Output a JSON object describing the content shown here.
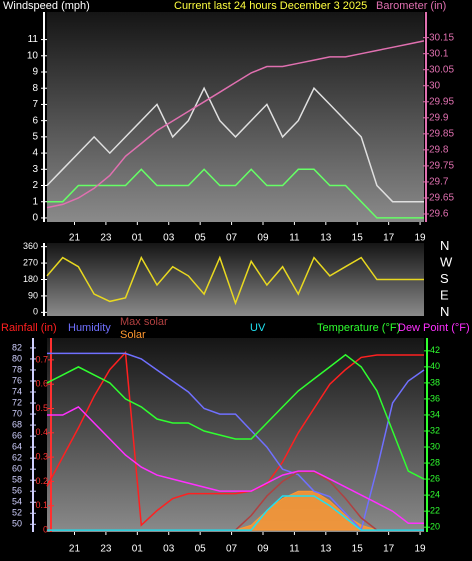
{
  "chart_data": [
    {
      "type": "line",
      "title": "Current last 24 hours December 3 2025",
      "ylabel": "Windspeed (mph)",
      "y2label": "Barometer (in)",
      "x": [
        0,
        1,
        2,
        3,
        4,
        5,
        6,
        7,
        8,
        9,
        10,
        11,
        12,
        13,
        14,
        15,
        16,
        17,
        18,
        19,
        20,
        21,
        22,
        23,
        24
      ],
      "xlim": [
        0,
        24
      ],
      "xticks": [
        {
          "value": 1.75,
          "label": "21"
        },
        {
          "value": 3.75,
          "label": "23"
        },
        {
          "value": 5.75,
          "label": "01"
        },
        {
          "value": 7.75,
          "label": "03"
        },
        {
          "value": 9.75,
          "label": "05"
        },
        {
          "value": 11.75,
          "label": "07"
        },
        {
          "value": 13.75,
          "label": "09"
        },
        {
          "value": 15.75,
          "label": "11"
        },
        {
          "value": 17.75,
          "label": "13"
        },
        {
          "value": 19.75,
          "label": "15"
        },
        {
          "value": 21.75,
          "label": "17"
        },
        {
          "value": 23.75,
          "label": "19"
        }
      ],
      "ylim": [
        -0.25,
        12.7
      ],
      "yticks": [
        0,
        1,
        2,
        3,
        4,
        5,
        6,
        7,
        8,
        9,
        10,
        11
      ],
      "y2lim": [
        29.575,
        30.23
      ],
      "y2ticks": [
        29.6,
        29.65,
        29.7,
        29.75,
        29.8,
        29.85,
        29.9,
        29.95,
        30,
        30.05,
        30.1,
        30.15
      ],
      "series": [
        {
          "color": "#e0e0e0",
          "values": [
            2,
            3,
            4,
            5,
            4,
            5,
            6,
            7,
            5,
            6,
            8,
            6,
            5,
            6,
            7,
            5,
            6,
            8,
            7,
            6,
            5,
            2,
            1,
            1,
            1
          ]
        },
        {
          "color": "#66ff66",
          "values": [
            1,
            1,
            2,
            2,
            2,
            2,
            3,
            2,
            2,
            2,
            3,
            2,
            2,
            3,
            2,
            2,
            3,
            3,
            2,
            2,
            1,
            0,
            0,
            0,
            0
          ]
        },
        {
          "color": "#e070b0",
          "axis": "y2",
          "values": [
            29.62,
            29.63,
            29.65,
            29.68,
            29.72,
            29.78,
            29.82,
            29.86,
            29.89,
            29.92,
            29.95,
            29.98,
            30.01,
            30.04,
            30.06,
            30.06,
            30.07,
            30.08,
            30.09,
            30.09,
            30.1,
            30.11,
            30.12,
            30.13,
            30.14
          ]
        }
      ]
    },
    {
      "type": "line",
      "x": [
        0,
        1,
        2,
        3,
        4,
        5,
        6,
        7,
        8,
        9,
        10,
        11,
        12,
        13,
        14,
        15,
        16,
        17,
        18,
        19,
        20,
        21,
        22,
        23,
        24
      ],
      "xlim": [
        0,
        24
      ],
      "ylim": [
        -20,
        380
      ],
      "yticks": [
        0,
        90,
        180,
        270,
        360
      ],
      "y2lim": [
        -20,
        380
      ],
      "y2ticks": [
        {
          "value": 360,
          "label": "N"
        },
        {
          "value": 270,
          "label": "W"
        },
        {
          "value": 180,
          "label": "S"
        },
        {
          "value": 90,
          "label": "E"
        },
        {
          "value": 0,
          "label": "N"
        }
      ],
      "series": [
        {
          "color": "#e8d820",
          "values": [
            200,
            300,
            250,
            100,
            60,
            80,
            300,
            150,
            250,
            200,
            100,
            300,
            50,
            280,
            150,
            250,
            100,
            300,
            200,
            250,
            300,
            180,
            180,
            180,
            180
          ]
        }
      ]
    },
    {
      "type": "line",
      "x": [
        0,
        1,
        2,
        3,
        4,
        5,
        6,
        7,
        8,
        9,
        10,
        11,
        12,
        13,
        14,
        15,
        16,
        17,
        18,
        19,
        20,
        21,
        22,
        23,
        24
      ],
      "xlim": [
        0,
        24
      ],
      "xticks": [
        {
          "value": 1.75,
          "label": "21"
        },
        {
          "value": 3.75,
          "label": "23"
        },
        {
          "value": 5.75,
          "label": "01"
        },
        {
          "value": 7.75,
          "label": "03"
        },
        {
          "value": 9.75,
          "label": "05"
        },
        {
          "value": 11.75,
          "label": "07"
        },
        {
          "value": 13.75,
          "label": "09"
        },
        {
          "value": 15.75,
          "label": "11"
        },
        {
          "value": 17.75,
          "label": "13"
        },
        {
          "value": 19.75,
          "label": "15"
        },
        {
          "value": 21.75,
          "label": "17"
        },
        {
          "value": 23.75,
          "label": "19"
        }
      ],
      "ylim": [
        -0.008,
        0.79
      ],
      "yticks": [
        0,
        0.1,
        0.2,
        0.3,
        0.4,
        0.5,
        0.6,
        0.7
      ],
      "y2lim": [
        19.4,
        43.6
      ],
      "y2ticks": [
        20,
        22,
        24,
        26,
        28,
        30,
        32,
        34,
        36,
        38,
        40,
        42
      ],
      "y3lim": [
        48.6,
        83.8
      ],
      "y3ticks": [
        50,
        52,
        54,
        56,
        58,
        60,
        62,
        64,
        66,
        68,
        70,
        72,
        74,
        76,
        78,
        80,
        82
      ],
      "series": [
        {
          "name": "Rainfall (in)",
          "color": "#ff2020",
          "values": [
            0.18,
            0.3,
            0.42,
            0.55,
            0.66,
            0.73,
            0.02,
            0.08,
            0.13,
            0.15,
            0.15,
            0.15,
            0.15,
            0.16,
            0.19,
            0.28,
            0.4,
            0.5,
            0.6,
            0.66,
            0.71,
            0.72,
            0.72,
            0.72,
            0.72
          ]
        },
        {
          "name": "Humidity",
          "color": "#7070ff",
          "axis": "y3",
          "values": [
            81,
            81,
            81,
            81,
            81,
            81,
            80,
            78,
            76,
            74,
            71,
            70,
            70,
            67,
            64,
            60,
            59,
            56,
            55,
            52,
            49,
            60,
            72,
            76,
            78
          ]
        },
        {
          "name": "Max solar",
          "color": "#b04040",
          "values": [
            0,
            0,
            0,
            0,
            0,
            0,
            0,
            0,
            0,
            0,
            0,
            0,
            0,
            0.06,
            0.14,
            0.2,
            0.24,
            0.24,
            0.2,
            0.13,
            0.05,
            0,
            0,
            0,
            0
          ]
        },
        {
          "name": "Solar",
          "color": "#ff9830",
          "fill": true,
          "values": [
            0,
            0,
            0,
            0,
            0,
            0,
            0,
            0,
            0,
            0,
            0,
            0,
            0,
            0.02,
            0.08,
            0.13,
            0.16,
            0.16,
            0.12,
            0.06,
            0.02,
            0,
            0,
            0,
            0
          ]
        },
        {
          "name": "UV",
          "color": "#20e0f0",
          "values": [
            0,
            0,
            0,
            0,
            0,
            0,
            0,
            0,
            0,
            0,
            0,
            0,
            0,
            0,
            0.08,
            0.14,
            0.14,
            0.14,
            0.1,
            0.05,
            0,
            0,
            0,
            0,
            0
          ]
        },
        {
          "name": "Temperature (°F)",
          "color": "#30ff30",
          "axis": "y2",
          "values": [
            38,
            39,
            40,
            39,
            38,
            36,
            35,
            33.5,
            33,
            33,
            32,
            31.5,
            31,
            31,
            33,
            35,
            37,
            38.5,
            40,
            41.5,
            40,
            37,
            32,
            27,
            26
          ]
        },
        {
          "name": "Dew Point (°F)",
          "color": "#ff30ff",
          "axis": "y2",
          "values": [
            34,
            34,
            35,
            33,
            31,
            29,
            27.5,
            26.5,
            26,
            25.5,
            25,
            24.5,
            24.5,
            24.5,
            25.5,
            26.5,
            27,
            27,
            26,
            25,
            24,
            23,
            22,
            20.5,
            20.5
          ]
        }
      ]
    }
  ]
}
